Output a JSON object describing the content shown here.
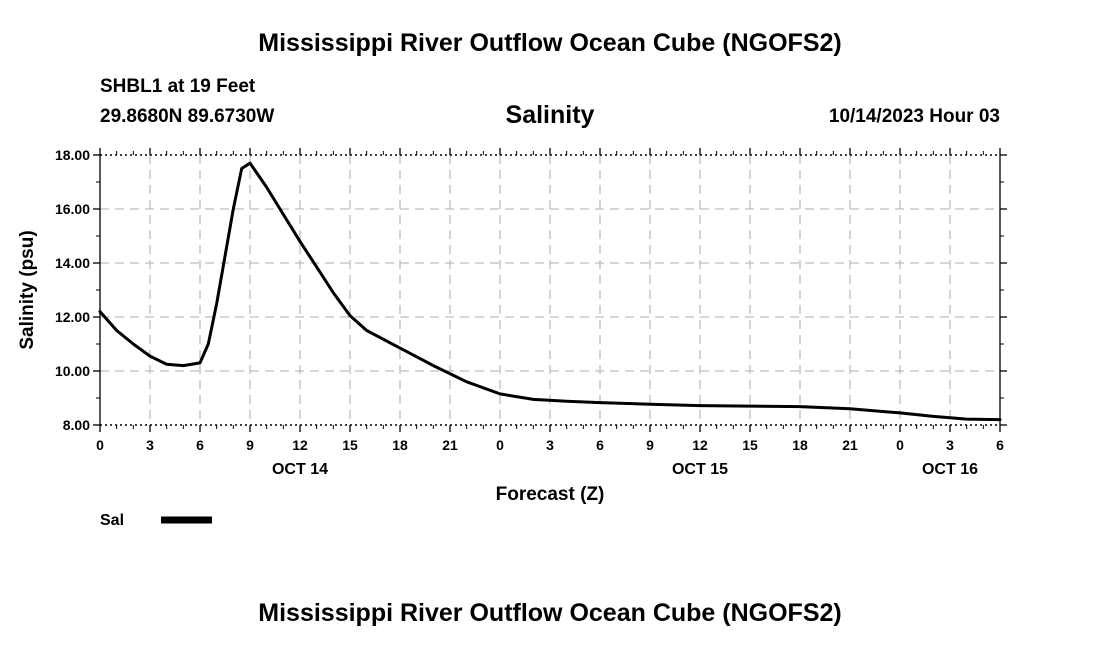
{
  "page": {
    "title": "Mississippi River Outflow Ocean Cube (NGOFS2)",
    "station": "SHBL1 at 19 Feet",
    "coords": "29.8680N  89.6730W",
    "datetime": "10/14/2023 Hour 03",
    "footer_title": "Mississippi River Outflow Ocean Cube (NGOFS2)"
  },
  "chart_data": {
    "type": "line",
    "title": "Salinity",
    "xlabel": "Forecast (Z)",
    "ylabel": "Salinity (psu)",
    "ylim": [
      8,
      18
    ],
    "xlim": [
      0,
      54
    ],
    "grid": true,
    "y_ticks": [
      "8.00",
      "10.00",
      "12.00",
      "14.00",
      "16.00",
      "18.00"
    ],
    "x_tick_labels": [
      "0",
      "3",
      "6",
      "9",
      "12",
      "15",
      "18",
      "21",
      "0",
      "3",
      "6",
      "9",
      "12",
      "15",
      "18",
      "21",
      "0",
      "3",
      "6"
    ],
    "day_labels": [
      {
        "label": "OCT 14",
        "hour": 12
      },
      {
        "label": "OCT 15",
        "hour": 36
      },
      {
        "label": "OCT 16",
        "hour": 51
      }
    ],
    "legend": {
      "placement": "bottom-left",
      "label": "Sal"
    },
    "series": [
      {
        "name": "Sal",
        "x": [
          0,
          1,
          2,
          3,
          4,
          5,
          6,
          6.5,
          7,
          8,
          8.5,
          9,
          10,
          11,
          12,
          13,
          14,
          15,
          16,
          18,
          20,
          22,
          24,
          26,
          28,
          30,
          33,
          36,
          39,
          42,
          45,
          48,
          50,
          52,
          54
        ],
        "y": [
          12.2,
          11.5,
          11.0,
          10.55,
          10.25,
          10.2,
          10.3,
          11.0,
          12.5,
          16.0,
          17.5,
          17.7,
          16.8,
          15.8,
          14.8,
          13.85,
          12.9,
          12.05,
          11.5,
          10.85,
          10.2,
          9.6,
          9.15,
          8.95,
          8.88,
          8.83,
          8.77,
          8.72,
          8.7,
          8.68,
          8.6,
          8.45,
          8.32,
          8.22,
          8.2
        ]
      }
    ]
  }
}
